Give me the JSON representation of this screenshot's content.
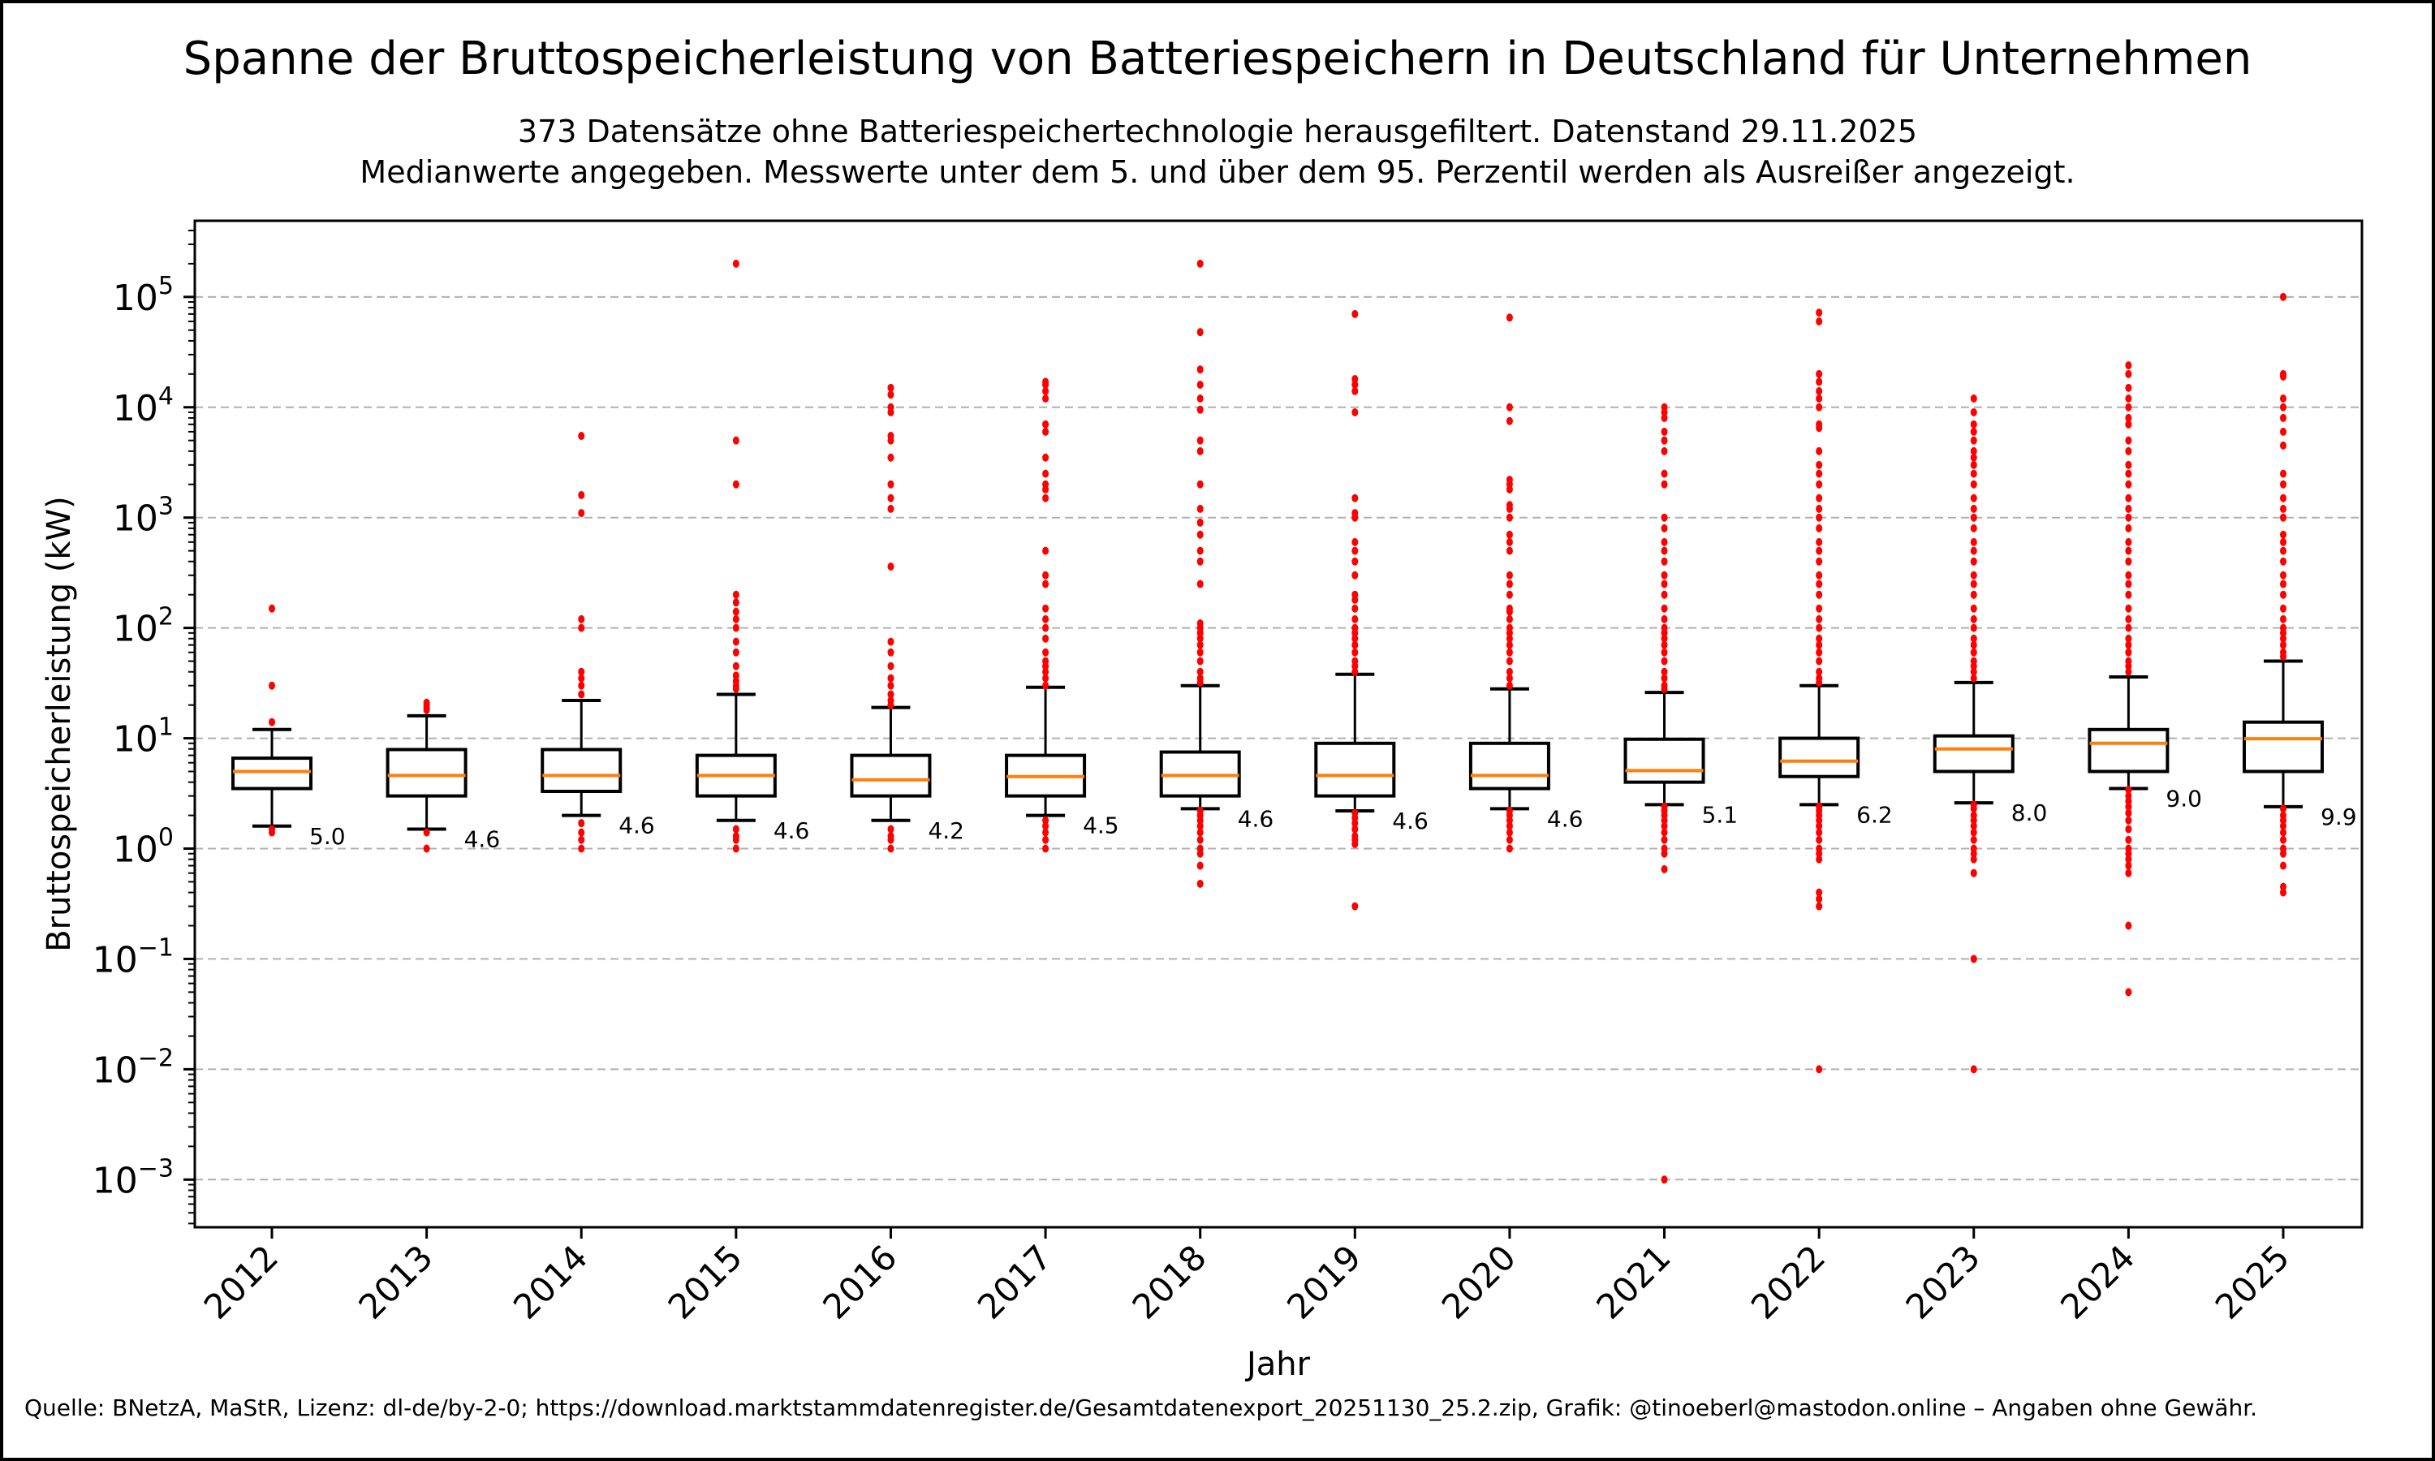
{
  "chart_data": {
    "type": "box",
    "title": "Spanne der Bruttospeicherleistung von Batteriespeichern in Deutschland für Unternehmen",
    "subtitle_lines": [
      "373 Datensätze ohne Batteriespeichertechnologie herausgefiltert. Datenstand 29.11.2025",
      "Medianwerte angegeben. Messwerte unter dem 5. und über dem 95. Perzentil werden als Ausreißer angezeigt."
    ],
    "xlabel": "Jahr",
    "ylabel": "Bruttospeicherleistung (kW)",
    "yscale": "log",
    "ylim": [
      0.00037,
      490000
    ],
    "yticks": [
      {
        "value": 100000,
        "base": "10",
        "exp": "5"
      },
      {
        "value": 10000,
        "base": "10",
        "exp": "4"
      },
      {
        "value": 1000,
        "base": "10",
        "exp": "3"
      },
      {
        "value": 100,
        "base": "10",
        "exp": "2"
      },
      {
        "value": 10,
        "base": "10",
        "exp": "1"
      },
      {
        "value": 1,
        "base": "10",
        "exp": "0"
      },
      {
        "value": 0.1,
        "base": "10",
        "exp": "−1"
      },
      {
        "value": 0.01,
        "base": "10",
        "exp": "−2"
      },
      {
        "value": 0.001,
        "base": "10",
        "exp": "−3"
      }
    ],
    "grid": "y-major-dashed",
    "colors": {
      "box": "#000000",
      "median": "#ff7f0e",
      "outlier": "#ff0000",
      "grid": "#b0b0b0"
    },
    "categories": [
      "2012",
      "2013",
      "2014",
      "2015",
      "2016",
      "2017",
      "2018",
      "2019",
      "2020",
      "2021",
      "2022",
      "2023",
      "2024",
      "2025"
    ],
    "boxes": [
      {
        "year": "2012",
        "whislo": 1.6,
        "q1": 3.5,
        "med": 5.0,
        "q3": 6.6,
        "whishi": 12,
        "median_label": "5.0",
        "fliers": [
          150,
          30,
          14,
          1.5,
          1.4
        ]
      },
      {
        "year": "2013",
        "whislo": 1.5,
        "q1": 3.0,
        "med": 4.6,
        "q3": 7.9,
        "whishi": 16,
        "median_label": "4.6",
        "fliers": [
          21,
          20,
          19,
          18,
          1.4,
          1.0
        ]
      },
      {
        "year": "2014",
        "whislo": 2.0,
        "q1": 3.3,
        "med": 4.6,
        "q3": 7.9,
        "whishi": 22,
        "median_label": "4.6",
        "fliers": [
          5500,
          1600,
          1100,
          120,
          100,
          40,
          35,
          30,
          25,
          1.7,
          1.4,
          1.2,
          1.0
        ]
      },
      {
        "year": "2015",
        "whislo": 1.8,
        "q1": 3.0,
        "med": 4.6,
        "q3": 7.0,
        "whishi": 25,
        "median_label": "4.6",
        "fliers": [
          200000,
          5000,
          2000,
          200,
          170,
          140,
          120,
          100,
          75,
          60,
          45,
          37,
          33,
          30,
          28,
          1.5,
          1.3,
          1.2,
          1.0
        ]
      },
      {
        "year": "2016",
        "whislo": 1.8,
        "q1": 3.0,
        "med": 4.2,
        "q3": 7.0,
        "whishi": 19,
        "median_label": "4.2",
        "fliers": [
          15000,
          13000,
          10000,
          9000,
          5500,
          5000,
          3500,
          2000,
          1500,
          1200,
          360,
          75,
          60,
          45,
          35,
          30,
          25,
          22,
          20,
          1.5,
          1.3,
          1.2,
          1.0
        ]
      },
      {
        "year": "2017",
        "whislo": 2.0,
        "q1": 3.0,
        "med": 4.5,
        "q3": 7.0,
        "whishi": 29,
        "median_label": "4.5",
        "fliers": [
          17000,
          16000,
          14000,
          12000,
          7000,
          6000,
          3500,
          2500,
          2000,
          1800,
          1500,
          500,
          300,
          250,
          150,
          120,
          100,
          80,
          60,
          50,
          45,
          40,
          35,
          30,
          1.8,
          1.6,
          1.4,
          1.2,
          1.0
        ]
      },
      {
        "year": "2018",
        "whislo": 2.3,
        "q1": 3.0,
        "med": 4.6,
        "q3": 7.5,
        "whishi": 30,
        "median_label": "4.6",
        "fliers": [
          200000,
          48000,
          22000,
          16000,
          12000,
          9500,
          5000,
          4000,
          2000,
          1200,
          900,
          700,
          500,
          400,
          250,
          110,
          100,
          90,
          80,
          70,
          60,
          50,
          40,
          35,
          32,
          2.2,
          2.0,
          1.8,
          1.6,
          1.4,
          1.2,
          1.0,
          0.9,
          0.7,
          0.48
        ]
      },
      {
        "year": "2019",
        "whislo": 2.2,
        "q1": 3.0,
        "med": 4.6,
        "q3": 9.0,
        "whishi": 38,
        "median_label": "4.6",
        "fliers": [
          70000,
          18000,
          16000,
          14000,
          9000,
          1500,
          1100,
          1000,
          600,
          500,
          400,
          300,
          200,
          180,
          150,
          120,
          100,
          90,
          80,
          70,
          60,
          50,
          45,
          40,
          2.1,
          1.9,
          1.7,
          1.5,
          1.3,
          1.2,
          1.1,
          0.3
        ]
      },
      {
        "year": "2020",
        "whislo": 2.3,
        "q1": 3.5,
        "med": 4.6,
        "q3": 9.0,
        "whishi": 28,
        "median_label": "4.6",
        "fliers": [
          65000,
          10000,
          7500,
          2200,
          2000,
          1800,
          1300,
          1200,
          1000,
          700,
          600,
          500,
          300,
          250,
          200,
          150,
          140,
          120,
          100,
          90,
          80,
          70,
          60,
          50,
          40,
          35,
          30,
          2.2,
          2.0,
          1.8,
          1.6,
          1.4,
          1.2,
          1.0
        ]
      },
      {
        "year": "2021",
        "whislo": 2.5,
        "q1": 4.0,
        "med": 5.1,
        "q3": 9.8,
        "whishi": 26,
        "median_label": "5.1",
        "fliers": [
          10000,
          9000,
          8000,
          6000,
          5000,
          4000,
          2500,
          2000,
          1000,
          800,
          600,
          500,
          400,
          300,
          250,
          200,
          150,
          120,
          100,
          90,
          80,
          70,
          60,
          50,
          40,
          35,
          30,
          28,
          2.4,
          2.2,
          2.0,
          1.8,
          1.6,
          1.4,
          1.2,
          1.0,
          0.9,
          0.65,
          0.001
        ]
      },
      {
        "year": "2022",
        "whislo": 2.5,
        "q1": 4.5,
        "med": 6.2,
        "q3": 10,
        "whishi": 30,
        "median_label": "6.2",
        "fliers": [
          72000,
          60000,
          20000,
          17000,
          14000,
          12000,
          10000,
          7000,
          6500,
          4000,
          3000,
          2500,
          2000,
          1500,
          1200,
          1000,
          800,
          600,
          500,
          400,
          300,
          250,
          200,
          150,
          120,
          100,
          80,
          70,
          60,
          50,
          40,
          35,
          32,
          2.4,
          2.2,
          2.0,
          1.8,
          1.6,
          1.4,
          1.2,
          1.0,
          0.9,
          0.8,
          0.4,
          0.35,
          0.3,
          0.01
        ]
      },
      {
        "year": "2023",
        "whislo": 2.6,
        "q1": 5.0,
        "med": 8.0,
        "q3": 10.5,
        "whishi": 32,
        "median_label": "8.0",
        "fliers": [
          12000,
          9000,
          7000,
          6000,
          5000,
          4000,
          3500,
          3000,
          2500,
          2000,
          1500,
          1200,
          1000,
          800,
          600,
          500,
          400,
          300,
          250,
          200,
          150,
          120,
          100,
          80,
          70,
          60,
          50,
          45,
          40,
          35,
          2.5,
          2.3,
          2.0,
          1.8,
          1.6,
          1.4,
          1.2,
          1.0,
          0.9,
          0.8,
          0.6,
          0.1,
          0.01
        ]
      },
      {
        "year": "2024",
        "whislo": 3.5,
        "q1": 5.0,
        "med": 9.0,
        "q3": 12,
        "whishi": 36,
        "median_label": "9.0",
        "fliers": [
          24000,
          20000,
          15000,
          12000,
          10000,
          8000,
          7000,
          5000,
          4000,
          3000,
          2500,
          2000,
          1500,
          1200,
          1000,
          800,
          600,
          500,
          400,
          300,
          250,
          200,
          150,
          120,
          100,
          80,
          70,
          60,
          50,
          45,
          40,
          3.4,
          3.0,
          2.7,
          2.4,
          2.1,
          1.8,
          1.5,
          1.2,
          1.0,
          0.9,
          0.8,
          0.7,
          0.6,
          0.2,
          0.05
        ]
      },
      {
        "year": "2025",
        "whislo": 2.4,
        "q1": 5.0,
        "med": 9.9,
        "q3": 14,
        "whishi": 50,
        "median_label": "9.9",
        "fliers": [
          100000,
          20000,
          19000,
          12000,
          10000,
          8000,
          6000,
          4500,
          2500,
          2000,
          1500,
          1200,
          1000,
          700,
          600,
          500,
          400,
          300,
          250,
          200,
          150,
          120,
          100,
          90,
          80,
          70,
          60,
          55,
          2.3,
          2.0,
          1.8,
          1.6,
          1.4,
          1.2,
          1.0,
          0.9,
          0.7,
          0.45,
          0.4
        ]
      }
    ]
  },
  "footer": "Quelle: BNetzA, MaStR, Lizenz: dl-de/by-2-0; https://download.marktstammdatenregister.de/Gesamtdatenexport_20251130_25.2.zip, Grafik: @tinoeberl@mastodon.online – Angaben ohne Gewähr."
}
